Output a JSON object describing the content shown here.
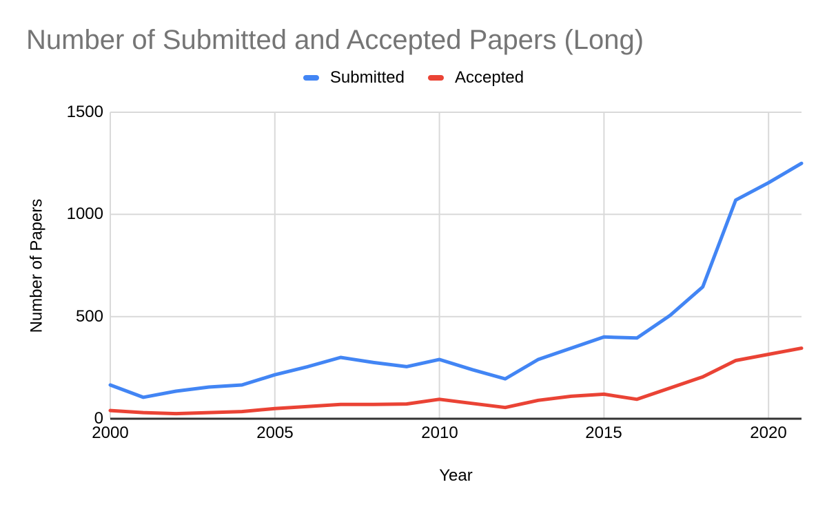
{
  "chart_data": {
    "type": "line",
    "title": "Number of Submitted and Accepted Papers (Long)",
    "xlabel": "Year",
    "ylabel": "Number of Papers",
    "x": [
      2000,
      2001,
      2002,
      2003,
      2004,
      2005,
      2006,
      2007,
      2008,
      2009,
      2010,
      2011,
      2012,
      2013,
      2014,
      2015,
      2016,
      2017,
      2018,
      2019,
      2020,
      2021
    ],
    "series": [
      {
        "name": "Submitted",
        "color": "#4285f4",
        "values": [
          165,
          105,
          135,
          155,
          165,
          215,
          255,
          300,
          275,
          255,
          290,
          240,
          195,
          290,
          345,
          400,
          395,
          505,
          645,
          1070,
          1155,
          1250
        ]
      },
      {
        "name": "Accepted",
        "color": "#ea4335",
        "values": [
          40,
          30,
          25,
          30,
          35,
          50,
          60,
          70,
          70,
          72,
          95,
          75,
          55,
          90,
          110,
          120,
          95,
          150,
          205,
          285,
          315,
          345
        ]
      }
    ],
    "xlim": [
      2000,
      2021
    ],
    "ylim": [
      0,
      1500
    ],
    "xticks": [
      2000,
      2005,
      2010,
      2015,
      2020
    ],
    "yticks": [
      0,
      500,
      1000,
      1500
    ],
    "grid": true,
    "legend_position": "top-center"
  },
  "style": {
    "background": "#ffffff",
    "title_color": "#757575",
    "text_color": "#000000",
    "grid_color": "#d9d9d9",
    "axis_line_color": "#333333"
  }
}
